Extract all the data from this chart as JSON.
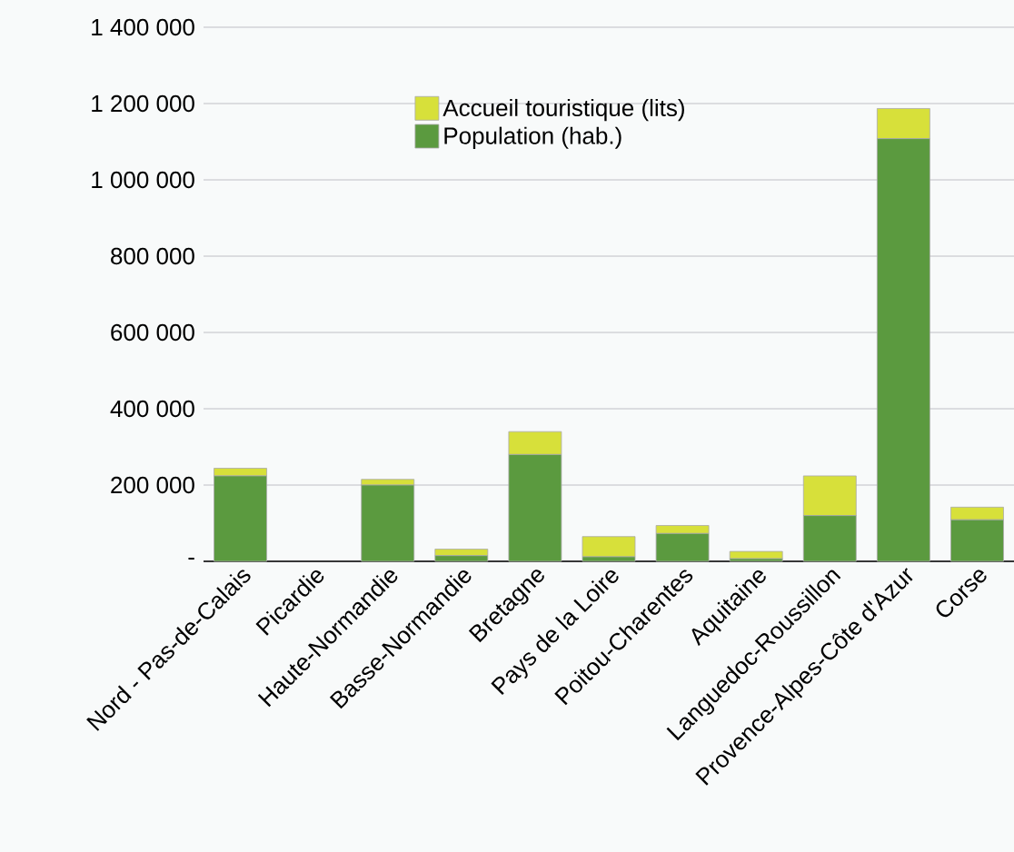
{
  "chart_data": {
    "type": "bar",
    "stacked": true,
    "categories": [
      "Nord - Pas-de-Calais",
      "Picardie",
      "Haute-Normandie",
      "Basse-Normandie",
      "Bretagne",
      "Pays de la Loire",
      "Poitou-Charentes",
      "Aquitaine",
      "Languedoc-Roussillon",
      "Provence-Alpes-Côte d'Azur",
      "Corse"
    ],
    "series": [
      {
        "name": "Population (hab.)",
        "color": "#5b9a3f",
        "values": [
          224000,
          0,
          200000,
          15000,
          280000,
          12000,
          73000,
          7000,
          120000,
          1108000,
          109000
        ]
      },
      {
        "name": "Accueil touristique (lits)",
        "color": "#d7e03a",
        "values": [
          20000,
          0,
          15000,
          17000,
          60000,
          53000,
          21000,
          19000,
          104000,
          79000,
          33000
        ]
      }
    ],
    "ylim": [
      0,
      1400000
    ],
    "yticks": [
      {
        "value": 0,
        "label": "-"
      },
      {
        "value": 200000,
        "label": "200 000"
      },
      {
        "value": 400000,
        "label": "400 000"
      },
      {
        "value": 600000,
        "label": "600 000"
      },
      {
        "value": 800000,
        "label": "800 000"
      },
      {
        "value": 1000000,
        "label": "1 000 000"
      },
      {
        "value": 1200000,
        "label": "1 200 000"
      },
      {
        "value": 1400000,
        "label": "1 400 000"
      }
    ],
    "grid": "y",
    "legend": "top"
  }
}
